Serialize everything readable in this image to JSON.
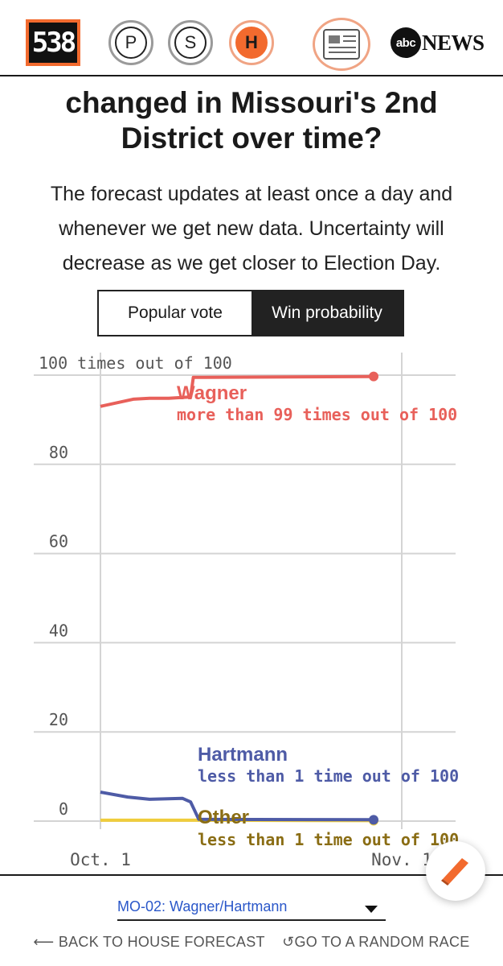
{
  "nav": {
    "logo": "538",
    "items": [
      {
        "label": "P"
      },
      {
        "label": "S"
      },
      {
        "label": "H"
      }
    ],
    "brand": {
      "abc": "abc",
      "news": "NEWS"
    }
  },
  "headline": {
    "line1": "changed in Missouri's 2nd",
    "line2": "District over time?"
  },
  "subtitle": "The forecast updates at least once a day and whenever we get new data. Uncertainty will decrease as we get closer to Election Day.",
  "toggle": {
    "options": [
      "Popular vote",
      "Win probability"
    ],
    "selected": "Win probability"
  },
  "chart_data": {
    "type": "line",
    "ylabel": "100 times out of 100",
    "ylim": [
      0,
      100
    ],
    "y_ticks": [
      "100 times out of 100",
      "80",
      "60",
      "40",
      "20",
      "0"
    ],
    "x_ticks": [
      "Oct. 1",
      "Nov. 1"
    ],
    "grid": true,
    "series": [
      {
        "name": "Wagner",
        "label": "more than 99 times out of 100",
        "color": "#e8605a",
        "points": [
          [
            0,
            93
          ],
          [
            0.12,
            94.6
          ],
          [
            0.18,
            94.8
          ],
          [
            0.25,
            94.8
          ],
          [
            0.33,
            95.1
          ],
          [
            0.34,
            99.5
          ],
          [
            1,
            99.7
          ]
        ]
      },
      {
        "name": "Hartmann",
        "label": "less than 1 time out of 100",
        "color": "#4e5ba6",
        "points": [
          [
            0,
            6.5
          ],
          [
            0.1,
            5.4
          ],
          [
            0.18,
            4.9
          ],
          [
            0.3,
            5.1
          ],
          [
            0.33,
            4.3
          ],
          [
            0.36,
            0.4
          ],
          [
            1,
            0.3
          ]
        ]
      },
      {
        "name": "Other",
        "label": "less than 1 time out of 100",
        "color": "#f0cd3c",
        "points": [
          [
            0,
            0.2
          ],
          [
            0.34,
            0.2
          ],
          [
            1,
            0.1
          ]
        ]
      }
    ],
    "label_colors": {
      "Wagner": "#e8605a",
      "Hartmann": "#4e5ba6",
      "Other": "#8a6d14"
    }
  },
  "race_select": {
    "value": "MO-02: Wagner/Hartmann"
  },
  "bottom_links": {
    "back": "BACK TO HOUSE FORECAST",
    "random": "GO TO A RANDOM RACE"
  }
}
